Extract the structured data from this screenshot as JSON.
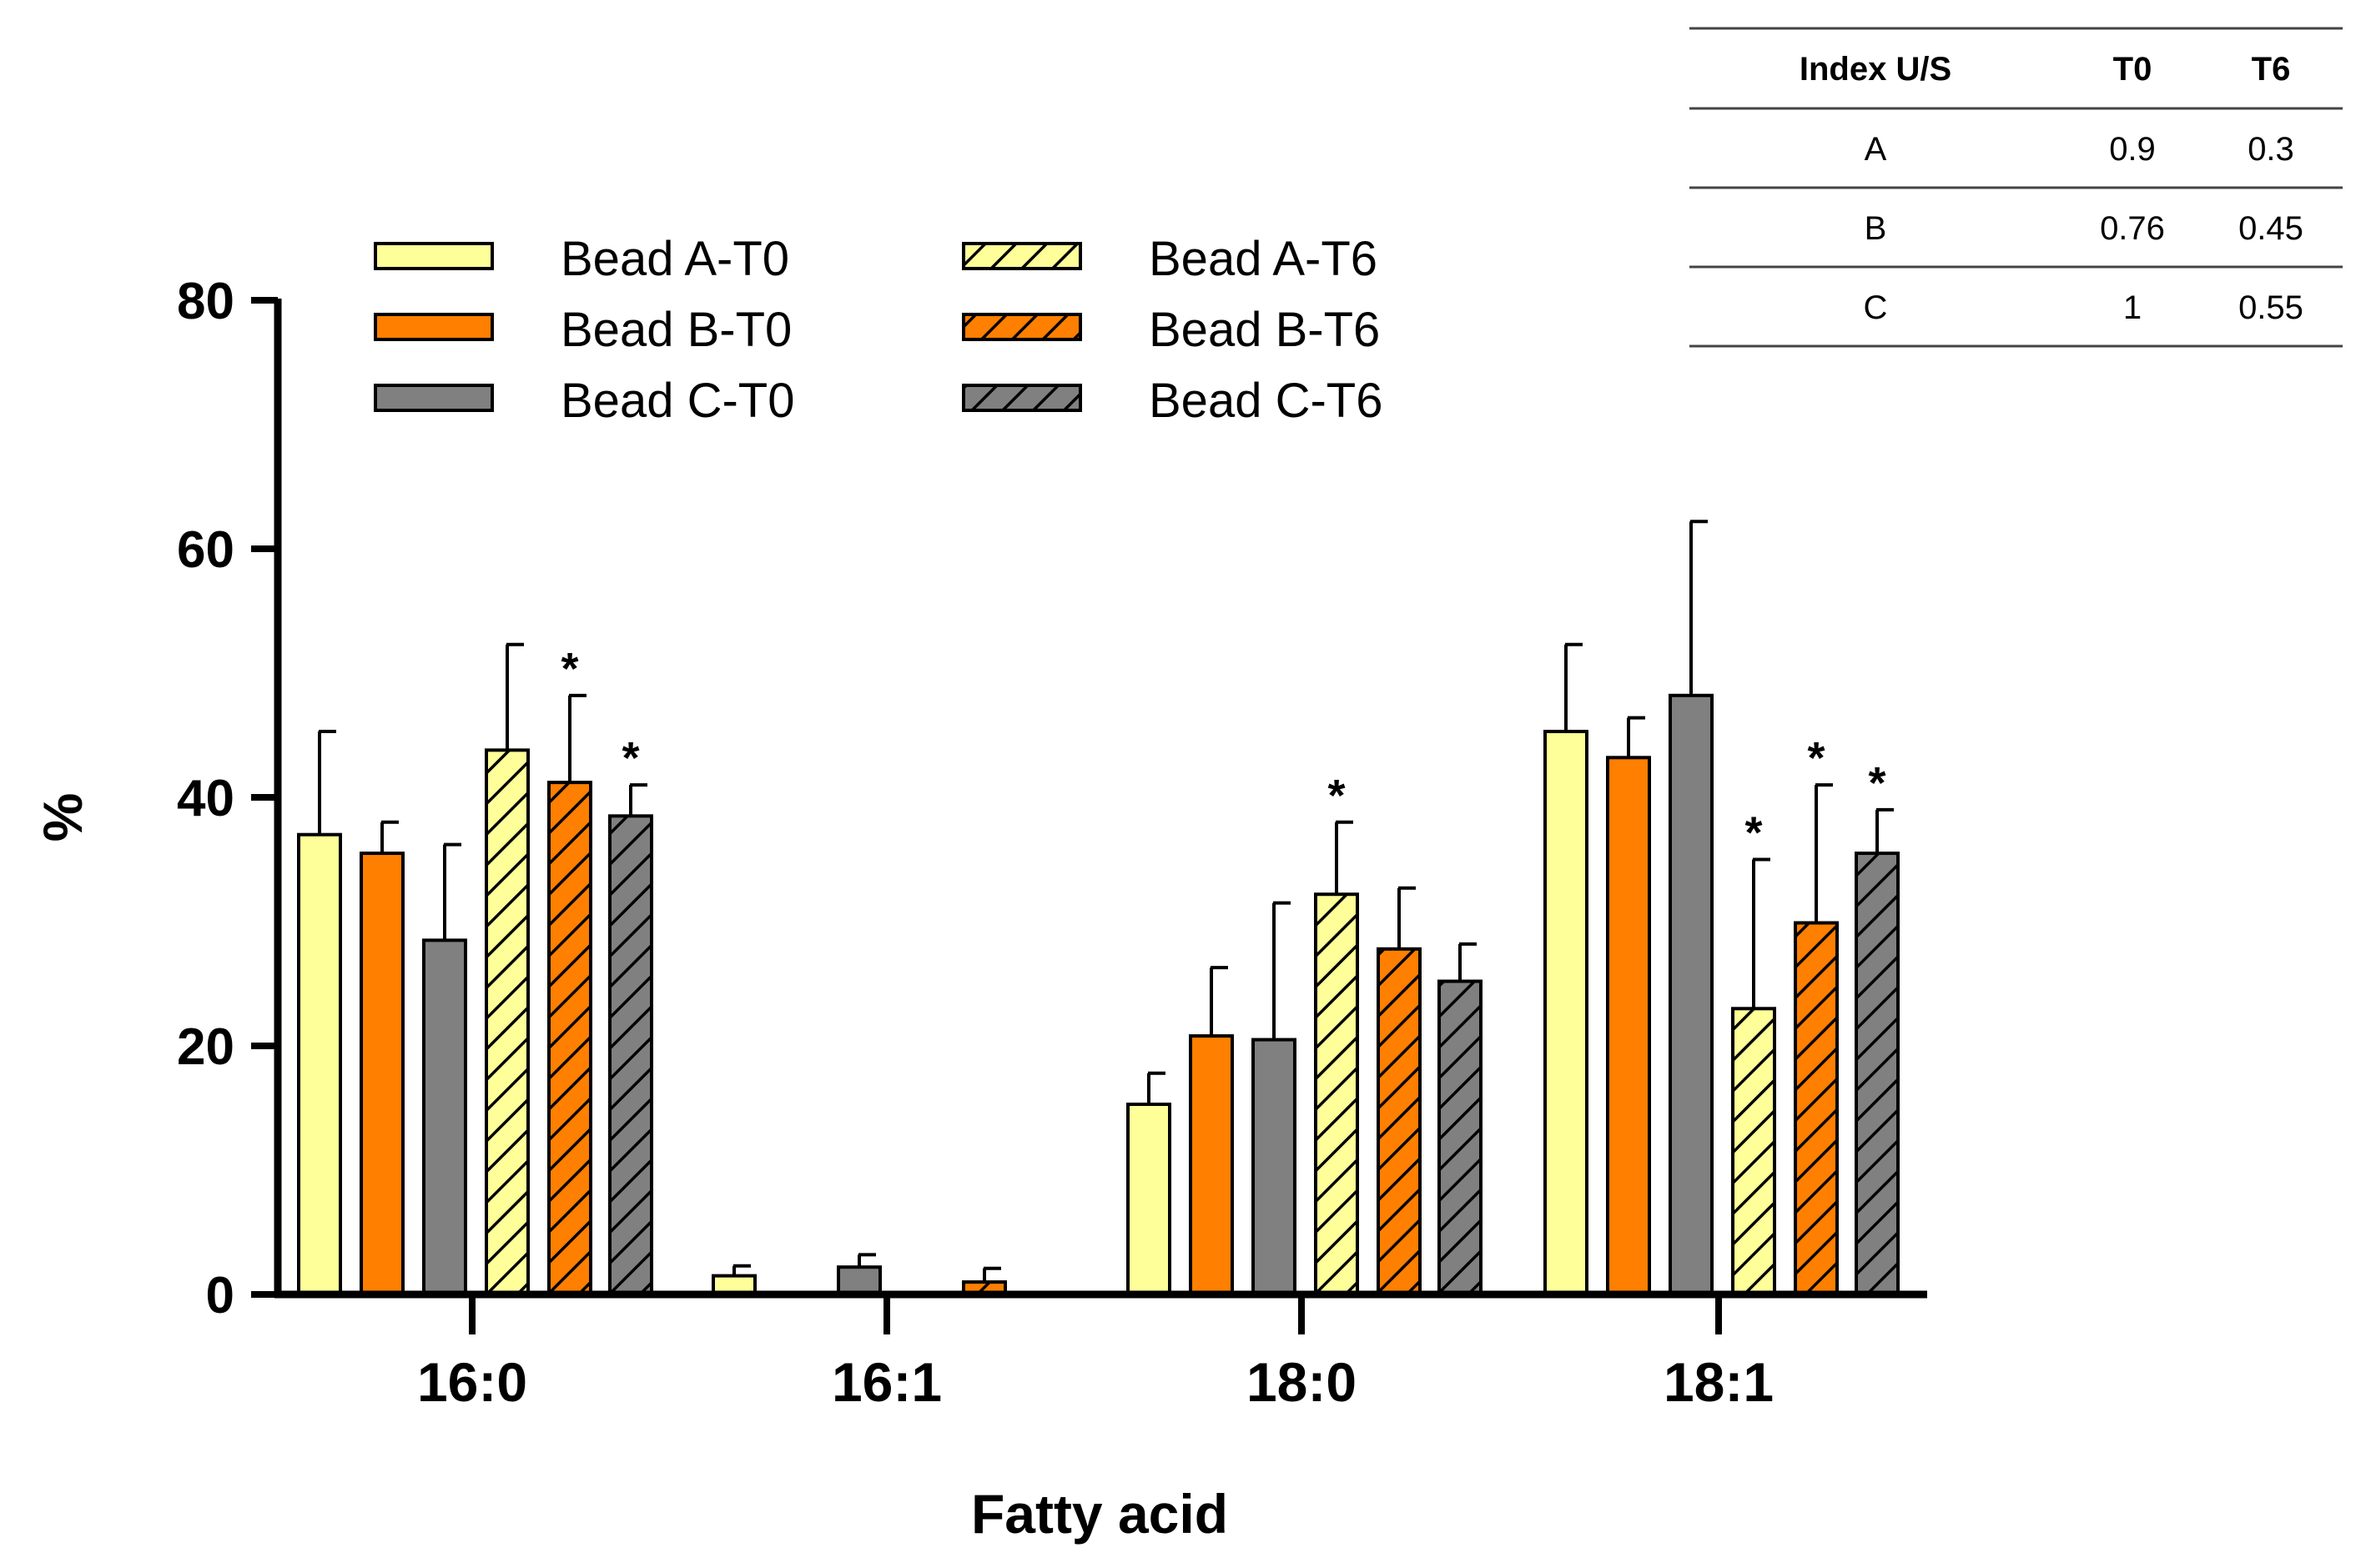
{
  "chart_data": {
    "type": "bar",
    "title": "",
    "xlabel": "Fatty acid",
    "ylabel": "%",
    "ylim": [
      0,
      80
    ],
    "yticks": [
      0,
      20,
      40,
      60,
      80
    ],
    "grid": false,
    "legend_position": "top-left",
    "categories": [
      "16:0",
      "16:1",
      "18:0",
      "18:1"
    ],
    "series": [
      {
        "name": "Bead A-T0",
        "color": "#FFFF99",
        "hatch": false,
        "values": [
          37,
          1.5,
          15.3,
          45.3
        ],
        "errors": [
          8.3,
          0.8,
          2.5,
          7
        ],
        "significant": [
          false,
          false,
          false,
          false
        ]
      },
      {
        "name": "Bead B-T0",
        "color": "#FF7F00",
        "hatch": false,
        "values": [
          35.5,
          0,
          20.8,
          43.2
        ],
        "errors": [
          2.5,
          0,
          5.5,
          3.2
        ],
        "significant": [
          false,
          false,
          false,
          false
        ]
      },
      {
        "name": "Bead C-T0",
        "color": "#808080",
        "hatch": false,
        "values": [
          28.5,
          2.2,
          20.5,
          48.2
        ],
        "errors": [
          7.7,
          1,
          11,
          14
        ],
        "significant": [
          false,
          false,
          false,
          false
        ]
      },
      {
        "name": "Bead A-T6",
        "color": "#FFFF99",
        "hatch": true,
        "values": [
          43.8,
          0,
          32.2,
          23
        ],
        "errors": [
          8.5,
          0,
          5.8,
          12
        ],
        "significant": [
          false,
          false,
          true,
          true
        ]
      },
      {
        "name": "Bead B-T6",
        "color": "#FF7F00",
        "hatch": true,
        "values": [
          41.2,
          1,
          27.8,
          29.9
        ],
        "errors": [
          7,
          1.1,
          4.9,
          11.1
        ],
        "significant": [
          true,
          false,
          false,
          true
        ]
      },
      {
        "name": "Bead C-T6",
        "color": "#808080",
        "hatch": true,
        "values": [
          38.5,
          0,
          25.2,
          35.5
        ],
        "errors": [
          2.5,
          0,
          3,
          3.5
        ],
        "significant": [
          true,
          false,
          false,
          true
        ]
      }
    ],
    "significance_marker": "*",
    "inset_table": {
      "headers": [
        "Index U/S",
        "T0",
        "T6"
      ],
      "rows": [
        [
          "A",
          "0.9",
          "0.3"
        ],
        [
          "B",
          "0.76",
          "0.45"
        ],
        [
          "C",
          "1",
          "0.55"
        ]
      ]
    }
  }
}
